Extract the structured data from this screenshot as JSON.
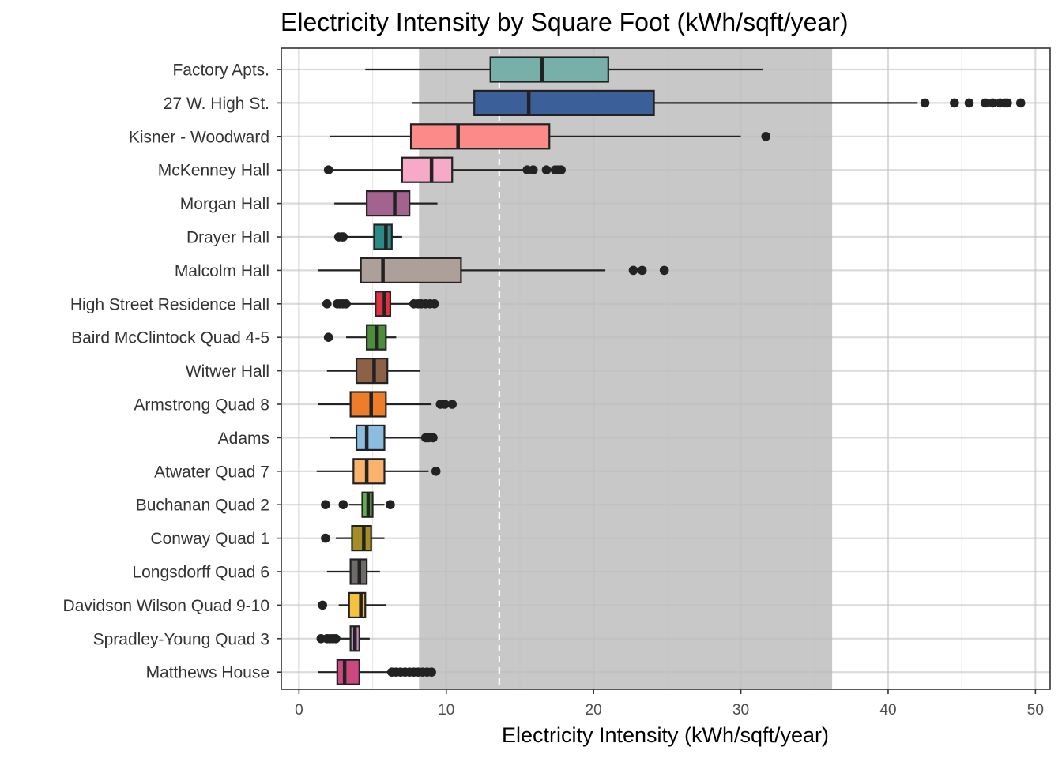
{
  "chart_data": {
    "type": "boxplot",
    "orientation": "horizontal",
    "title": "Electricity Intensity by Square Foot (kWh/sqft/year)",
    "xlabel": "Electricity Intensity (kWh/sqft/year)",
    "ylabel": "",
    "xlim": [
      -1.2,
      51
    ],
    "xticks": [
      0,
      10,
      20,
      30,
      40,
      50
    ],
    "grid": true,
    "shaded_band": [
      8.15,
      36.2
    ],
    "band_color": "#c8c8c8",
    "reference_line": 13.6,
    "categories": [
      {
        "name": "Factory Apts.",
        "color": "#76b0a8",
        "whisker_low": 4.5,
        "q1": 13,
        "median": 16.5,
        "q3": 21,
        "whisker_high": 31.5,
        "outliers": []
      },
      {
        "name": "27 W. High St.",
        "color": "#3a5f99",
        "whisker_low": 7.7,
        "q1": 11.9,
        "median": 15.6,
        "q3": 24.1,
        "whisker_high": 42,
        "outliers": [
          42.5,
          44.5,
          45.5,
          46.6,
          47.1,
          47.6,
          47.9,
          48.1,
          49.0
        ]
      },
      {
        "name": "Kisner - Woodward",
        "color": "#fb8a88",
        "whisker_low": 2.1,
        "q1": 7.6,
        "median": 10.8,
        "q3": 17,
        "whisker_high": 30,
        "outliers": [
          31.7
        ]
      },
      {
        "name": "McKenney Hall",
        "color": "#f6aac7",
        "whisker_low": 2.0,
        "q1": 7,
        "median": 9,
        "q3": 10.4,
        "whisker_high": 15.3,
        "outliers": [
          2.0,
          15.5,
          15.9,
          16.8,
          17.4,
          17.6,
          17.8
        ]
      },
      {
        "name": "Morgan Hall",
        "color": "#a3638f",
        "whisker_low": 2.4,
        "q1": 4.6,
        "median": 6.5,
        "q3": 7.5,
        "whisker_high": 9.4,
        "outliers": []
      },
      {
        "name": "Drayer Hall",
        "color": "#2a8b86",
        "whisker_low": 2.8,
        "q1": 5.1,
        "median": 5.9,
        "q3": 6.3,
        "whisker_high": 7.0,
        "outliers": [
          2.7,
          2.9,
          3.0
        ]
      },
      {
        "name": "Malcolm Hall",
        "color": "#ada09a",
        "whisker_low": 1.3,
        "q1": 4.2,
        "median": 5.7,
        "q3": 11,
        "whisker_high": 20.8,
        "outliers": [
          22.7,
          23.3,
          24.8
        ]
      },
      {
        "name": "High Street Residence Hall",
        "color": "#e03142",
        "whisker_low": 3.3,
        "q1": 5.2,
        "median": 5.8,
        "q3": 6.2,
        "whisker_high": 7.5,
        "outliers": [
          1.9,
          2.6,
          2.8,
          3.0,
          3.2,
          7.8,
          8.1,
          8.3,
          8.6,
          8.9,
          9.2
        ]
      },
      {
        "name": "Baird McClintock Quad 4-5",
        "color": "#4b8d3b",
        "whisker_low": 3.2,
        "q1": 4.6,
        "median": 5.3,
        "q3": 5.9,
        "whisker_high": 6.6,
        "outliers": [
          2.0
        ]
      },
      {
        "name": "Witwer Hall",
        "color": "#8d6148",
        "whisker_low": 1.9,
        "q1": 3.9,
        "median": 5.1,
        "q3": 6.0,
        "whisker_high": 8.2,
        "outliers": []
      },
      {
        "name": "Armstrong Quad 8",
        "color": "#ee7d2b",
        "whisker_low": 1.3,
        "q1": 3.5,
        "median": 4.9,
        "q3": 5.9,
        "whisker_high": 9.0,
        "outliers": [
          9.6,
          9.9,
          10.4
        ]
      },
      {
        "name": "Adams",
        "color": "#8cbde0",
        "whisker_low": 2.1,
        "q1": 3.9,
        "median": 4.6,
        "q3": 5.8,
        "whisker_high": 8.4,
        "outliers": [
          8.6,
          8.8,
          9.1
        ]
      },
      {
        "name": "Atwater Quad 7",
        "color": "#fbb26d",
        "whisker_low": 1.2,
        "q1": 3.7,
        "median": 4.6,
        "q3": 5.8,
        "whisker_high": 8.8,
        "outliers": [
          9.3
        ]
      },
      {
        "name": "Buchanan Quad 2",
        "color": "#63ad4c",
        "whisker_low": 3.4,
        "q1": 4.3,
        "median": 4.7,
        "q3": 5.0,
        "whisker_high": 5.8,
        "outliers": [
          1.8,
          3.0,
          6.2
        ]
      },
      {
        "name": "Conway Quad 1",
        "color": "#a28d26",
        "whisker_low": 2.5,
        "q1": 3.6,
        "median": 4.4,
        "q3": 4.9,
        "whisker_high": 5.8,
        "outliers": [
          1.8
        ]
      },
      {
        "name": "Longsdorff Quad 6",
        "color": "#6e6a69",
        "whisker_low": 1.9,
        "q1": 3.5,
        "median": 4.1,
        "q3": 4.6,
        "whisker_high": 5.5,
        "outliers": []
      },
      {
        "name": "Davidson Wilson Quad 9-10",
        "color": "#f4c23f",
        "whisker_low": 2.7,
        "q1": 3.4,
        "median": 4.2,
        "q3": 4.5,
        "whisker_high": 5.9,
        "outliers": [
          1.6
        ]
      },
      {
        "name": "Spradley-Young  Quad 3",
        "color": "#c38dbd",
        "whisker_low": 2.5,
        "q1": 3.5,
        "median": 3.8,
        "q3": 4.1,
        "whisker_high": 4.8,
        "outliers": [
          1.5,
          1.9,
          2.1,
          2.3,
          2.5
        ]
      },
      {
        "name": "Matthews House",
        "color": "#ca4a7f",
        "whisker_low": 1.3,
        "q1": 2.6,
        "median": 3.1,
        "q3": 4.1,
        "whisker_high": 6.1,
        "outliers": [
          6.3,
          6.6,
          6.9,
          7.2,
          7.5,
          7.8,
          8.1,
          8.4,
          8.7,
          9.0
        ]
      }
    ]
  }
}
